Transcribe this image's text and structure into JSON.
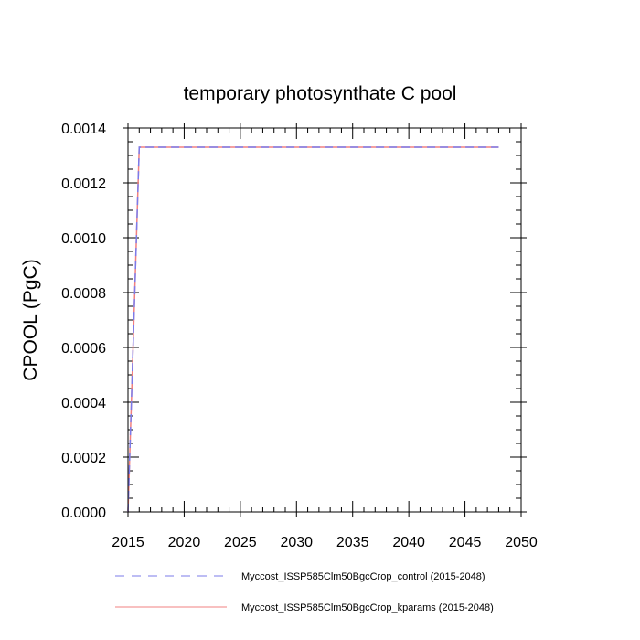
{
  "chart_data": {
    "type": "line",
    "title": "temporary photosynthate C pool",
    "xlabel": "",
    "ylabel": "CPOOL  (PgC)",
    "xlim": [
      2015,
      2050
    ],
    "ylim": [
      0,
      0.0014
    ],
    "x_ticks": [
      "2015",
      "2020",
      "2025",
      "2030",
      "2035",
      "2040",
      "2045",
      "2050"
    ],
    "y_ticks": [
      "0.0000",
      "0.0002",
      "0.0004",
      "0.0006",
      "0.0008",
      "0.0010",
      "0.0012",
      "0.0014"
    ],
    "grid": false,
    "legend_position": "bottom",
    "series": [
      {
        "name": "Myccost_ISSP585Clm50BgcCrop_control (2015-2048)",
        "color": "#7b7bea",
        "style": "dashed",
        "x": [
          2015,
          2016,
          2048
        ],
        "y": [
          0.0,
          0.00133,
          0.00133
        ]
      },
      {
        "name": "Myccost_ISSP585Clm50BgcCrop_kparams (2015-2048)",
        "color": "#f08080",
        "style": "solid",
        "x": [
          2015,
          2016,
          2048
        ],
        "y": [
          0.0,
          0.00133,
          0.00133
        ]
      }
    ]
  }
}
